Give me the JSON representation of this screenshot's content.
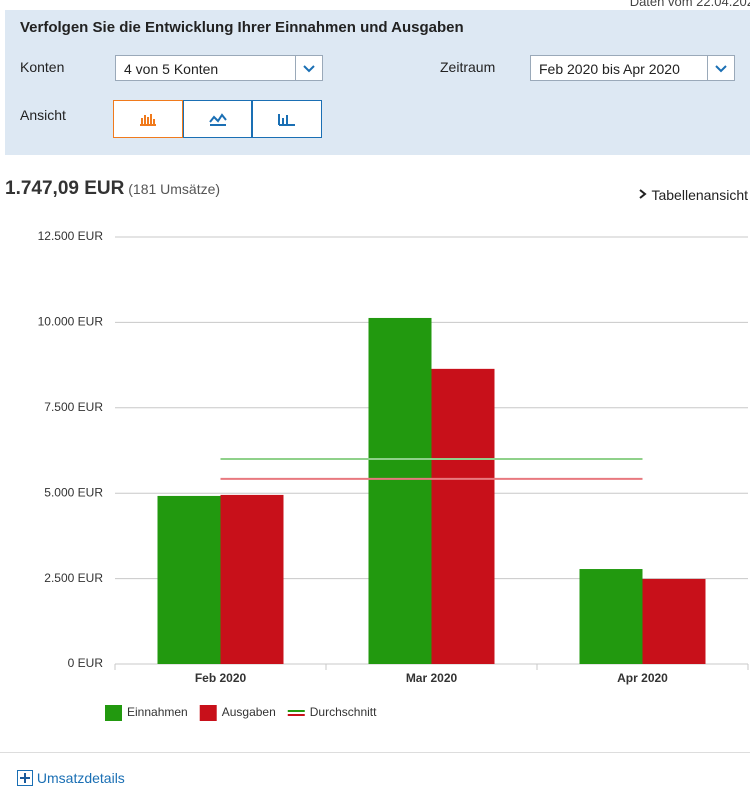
{
  "header": {
    "date_note": "Daten vom 22.04.202"
  },
  "filter": {
    "title": "Verfolgen Sie die Entwicklung Ihrer Einnahmen und Ausgaben",
    "accounts_label": "Konten",
    "accounts_value": "4 von 5 Konten",
    "period_label": "Zeitraum",
    "period_value": "Feb 2020 bis Apr 2020",
    "view_label": "Ansicht"
  },
  "summary": {
    "amount": "1.747,09 EUR",
    "count": "(181 Umsätze)",
    "table_link": "Tabellenansicht"
  },
  "chart_data": {
    "type": "bar",
    "categories": [
      "Feb 2020",
      "Mar 2020",
      "Apr 2020"
    ],
    "series": [
      {
        "name": "Einnahmen",
        "color": "#22990f",
        "values": [
          4920,
          10130,
          2780
        ],
        "average": 6000,
        "average_color": "#8fd18a"
      },
      {
        "name": "Ausgaben",
        "color": "#c8101a",
        "values": [
          4950,
          8640,
          2490
        ],
        "average": 5420,
        "average_color": "#e8797f"
      }
    ],
    "average_label": "Durchschnitt",
    "ylim": [
      0,
      12500
    ],
    "yticks": [
      {
        "value": 0,
        "label": "0 EUR"
      },
      {
        "value": 2500,
        "label": "2.500 EUR"
      },
      {
        "value": 5000,
        "label": "5.000 EUR"
      },
      {
        "value": 7500,
        "label": "7.500 EUR"
      },
      {
        "value": 10000,
        "label": "10.000 EUR"
      },
      {
        "value": 12500,
        "label": "12.500 EUR"
      }
    ],
    "grid": true,
    "legend": "bottom"
  },
  "footer": {
    "details_link": "Umsatzdetails"
  }
}
